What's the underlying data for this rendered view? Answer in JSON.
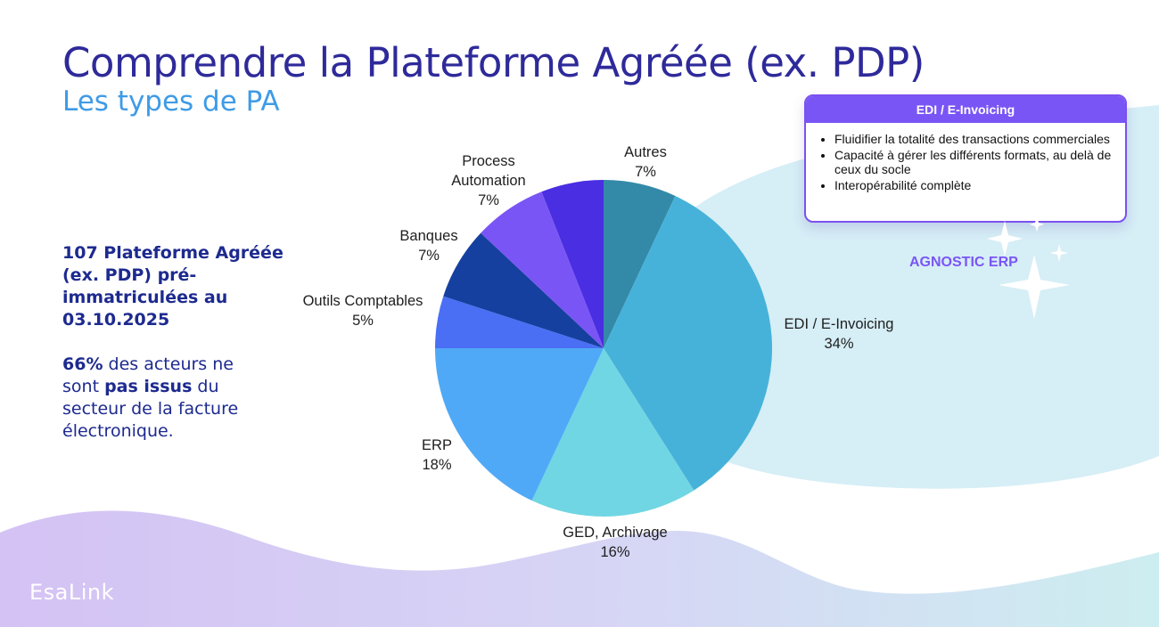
{
  "slide": {
    "title": "Comprendre la Plateforme Agréée (ex. PDP)",
    "subtitle": "Les types de PA",
    "stat_heading": "107 Plateforme Agréée (ex. PDP) pré-immatriculées au 03.10.2025",
    "stat_text": {
      "pct": "66%",
      "part1": " des acteurs ne sont ",
      "bold": "pas issus",
      "part2": " du secteur de la facture électronique."
    },
    "logo": "EsaLink"
  },
  "info_box": {
    "header": "EDI / E-Invoicing",
    "items": [
      "Fluidifier la totalité des transactions commerciales",
      "Capacité à gérer les différents formats, au delà de ceux du socle",
      "Interopérabilité complète"
    ],
    "tag": "AGNOSTIC ERP"
  },
  "chart_data": {
    "type": "pie",
    "title": "",
    "start": "12 o'clock, clockwise",
    "slices": [
      {
        "label": "Autres",
        "value": 7,
        "display": "7%",
        "color": "#338aa8"
      },
      {
        "label": "EDI / E-Invoicing",
        "value": 34,
        "display": "34%",
        "color": "#47b2d9"
      },
      {
        "label": "GED, Archivage",
        "value": 16,
        "display": "16%",
        "color": "#70d6e3"
      },
      {
        "label": "ERP",
        "value": 18,
        "display": "18%",
        "color": "#4fa9f6"
      },
      {
        "label": "Outils Comptables",
        "value": 5,
        "display": "5%",
        "color": "#4a6ff5"
      },
      {
        "label": "Banques",
        "value": 7,
        "display": "7%",
        "color": "#1640a0"
      },
      {
        "label": "Process Automation",
        "value": 7,
        "display": "7%",
        "color": "#7a55f5"
      },
      {
        "label": "",
        "value": 6,
        "display": "",
        "color": "#4a2ee2"
      }
    ]
  },
  "colors": {
    "title": "#2e2a9a",
    "subtitle": "#3f9be6",
    "accent": "#7a55f5",
    "text": "#1d2a8f"
  }
}
